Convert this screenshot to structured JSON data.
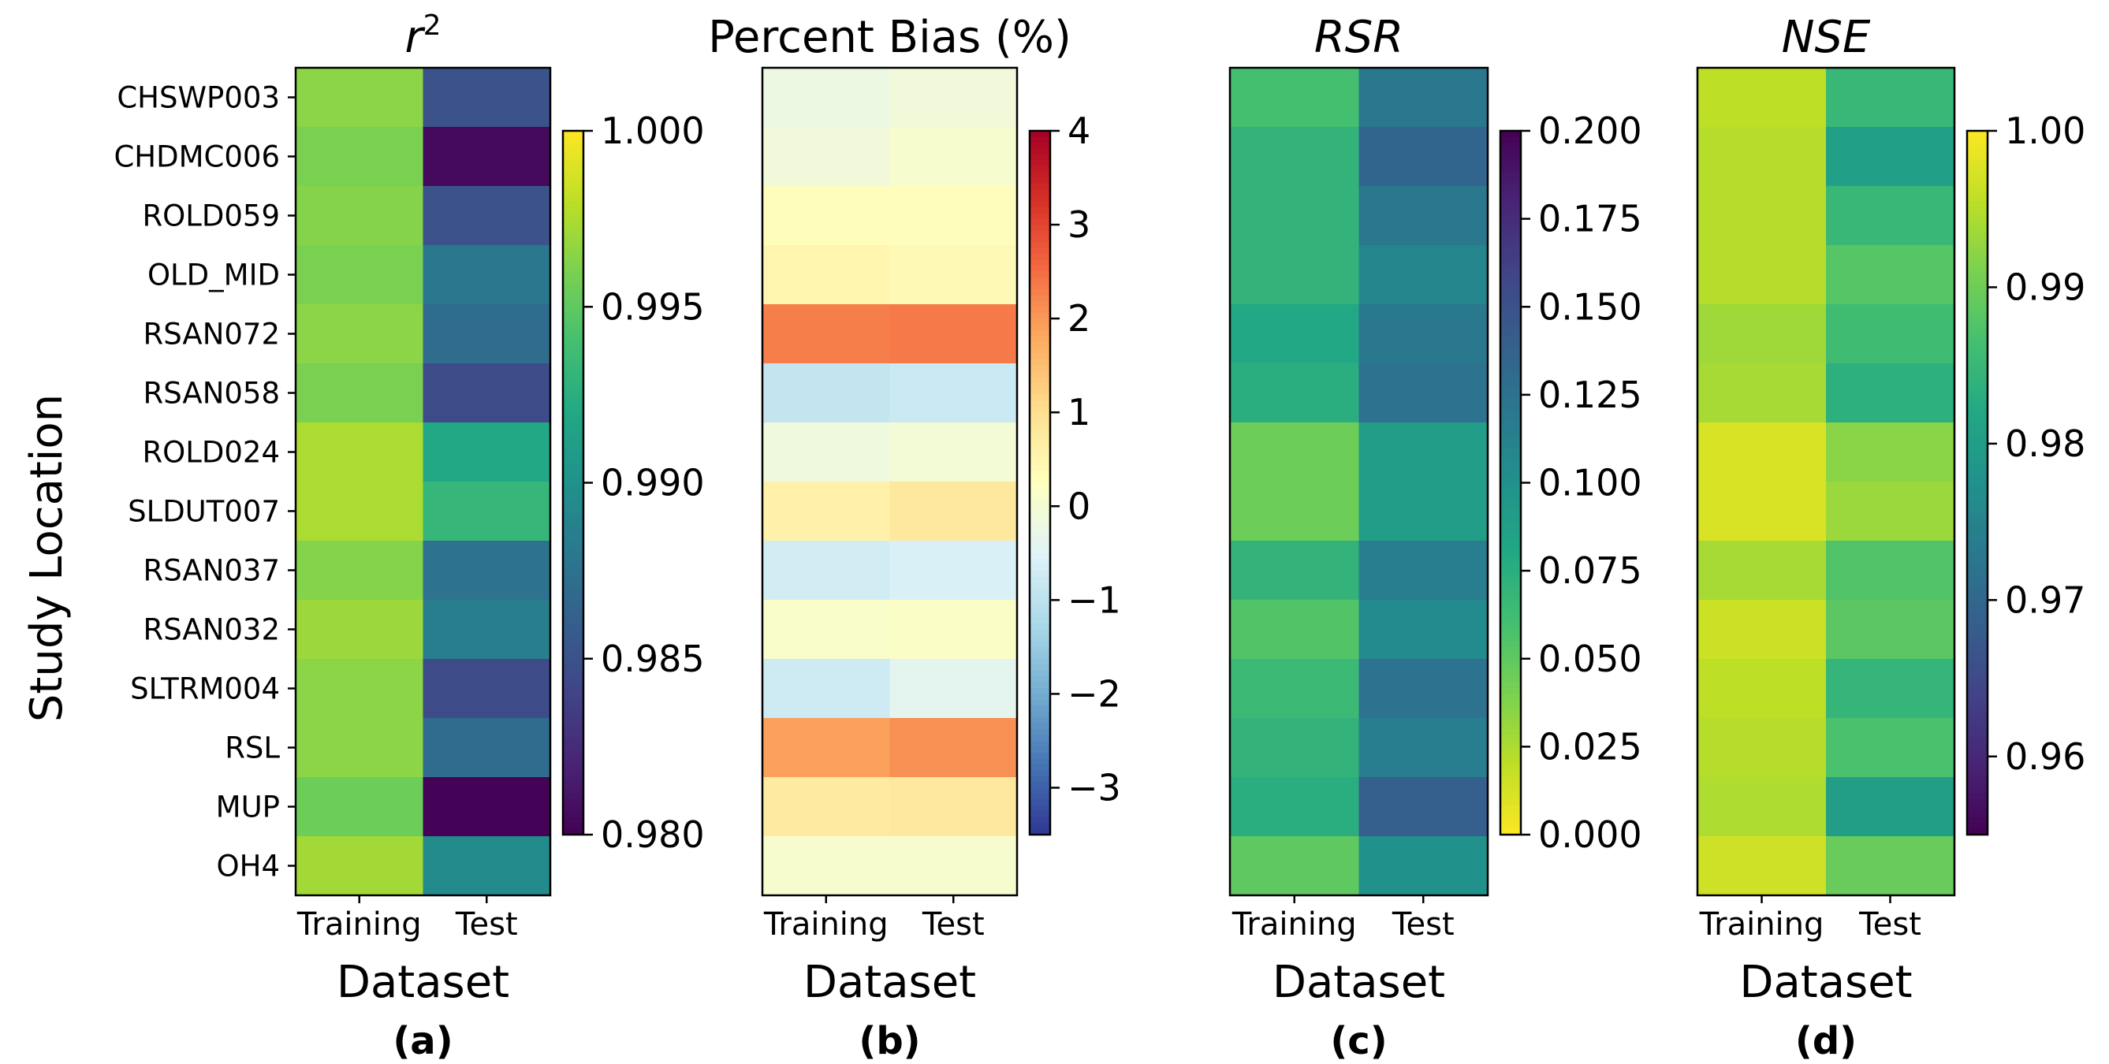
{
  "figure": {
    "ylabel": "Study Location",
    "locations": [
      "CHSWP003",
      "CHDMC006",
      "ROLD059",
      "OLD_MID",
      "RSAN072",
      "RSAN058",
      "ROLD024",
      "SLDUT007",
      "RSAN037",
      "RSAN032",
      "SLTRM004",
      "RSL",
      "MUP",
      "OH4"
    ]
  },
  "chart_data": [
    {
      "type": "heatmap",
      "title": "r²",
      "title_base": "r",
      "title_sup": "2",
      "letter": "(a)",
      "xlabel": "Dataset",
      "columns": [
        "Training",
        "Test"
      ],
      "colormap": "viridis",
      "reverse": false,
      "vmin": 0.98,
      "vmax": 1.0,
      "colorbar_ticks": [
        1.0,
        0.995,
        0.99,
        0.985,
        0.98
      ],
      "colorbar_tick_labels": [
        "1.000",
        "0.995",
        "0.990",
        "0.985",
        "0.980"
      ],
      "training": [
        0.9965,
        0.996,
        0.9963,
        0.996,
        0.9965,
        0.996,
        0.9975,
        0.9975,
        0.9963,
        0.997,
        0.9965,
        0.9965,
        0.9955,
        0.9972
      ],
      "test": [
        0.985,
        0.9805,
        0.985,
        0.988,
        0.987,
        0.9845,
        0.992,
        0.9932,
        0.9875,
        0.9885,
        0.9845,
        0.987,
        0.9801,
        0.9895
      ]
    },
    {
      "type": "heatmap",
      "title": "Percent Bias (%)",
      "letter": "(b)",
      "xlabel": "Dataset",
      "columns": [
        "Training",
        "Test"
      ],
      "colormap": "RdYlBu_r",
      "reverse": false,
      "vmin": -3.5,
      "vmax": 4,
      "colorbar_ticks": [
        4,
        3,
        2,
        1,
        0,
        -1,
        -2,
        -3
      ],
      "colorbar_tick_labels": [
        "4",
        "3",
        "2",
        "1",
        "0",
        "−1",
        "−2",
        "−3"
      ],
      "training": [
        -0.2,
        -0.1,
        0.3,
        0.5,
        2.3,
        -0.9,
        -0.15,
        0.6,
        -0.7,
        0.1,
        -0.75,
        1.9,
        0.75,
        0.05
      ],
      "test": [
        -0.1,
        0.05,
        0.3,
        0.4,
        2.35,
        -0.8,
        -0.05,
        0.8,
        -0.6,
        0.15,
        -0.4,
        2.1,
        0.8,
        0.05
      ]
    },
    {
      "type": "heatmap",
      "title": "RSR",
      "letter": "(c)",
      "xlabel": "Dataset",
      "columns": [
        "Training",
        "Test"
      ],
      "colormap": "viridis",
      "reverse": true,
      "vmin": 0.0,
      "vmax": 0.2,
      "colorbar_ticks": [
        0.2,
        0.175,
        0.15,
        0.125,
        0.1,
        0.075,
        0.05,
        0.025,
        0.0
      ],
      "colorbar_tick_labels": [
        "0.200",
        "0.175",
        "0.150",
        "0.125",
        "0.100",
        "0.075",
        "0.050",
        "0.025",
        "0.000"
      ],
      "training": [
        0.06,
        0.07,
        0.07,
        0.07,
        0.08,
        0.075,
        0.045,
        0.045,
        0.07,
        0.055,
        0.065,
        0.07,
        0.075,
        0.05
      ],
      "test": [
        0.12,
        0.135,
        0.12,
        0.11,
        0.12,
        0.125,
        0.09,
        0.09,
        0.115,
        0.105,
        0.125,
        0.115,
        0.14,
        0.1
      ]
    },
    {
      "type": "heatmap",
      "title": "NSE",
      "letter": "(d)",
      "xlabel": "Dataset",
      "columns": [
        "Training",
        "Test"
      ],
      "colormap": "viridis",
      "reverse": false,
      "vmin": 0.955,
      "vmax": 1.0,
      "colorbar_ticks": [
        1.0,
        0.99,
        0.98,
        0.97,
        0.96
      ],
      "colorbar_tick_labels": [
        "1.00",
        "0.99",
        "0.98",
        "0.97",
        "0.96"
      ],
      "training": [
        0.9955,
        0.995,
        0.995,
        0.995,
        0.9935,
        0.994,
        0.9975,
        0.9975,
        0.994,
        0.9965,
        0.9955,
        0.995,
        0.9945,
        0.9968
      ],
      "test": [
        0.985,
        0.9805,
        0.985,
        0.988,
        0.986,
        0.9835,
        0.992,
        0.9932,
        0.9875,
        0.9885,
        0.9845,
        0.987,
        0.9801,
        0.9895
      ]
    }
  ]
}
